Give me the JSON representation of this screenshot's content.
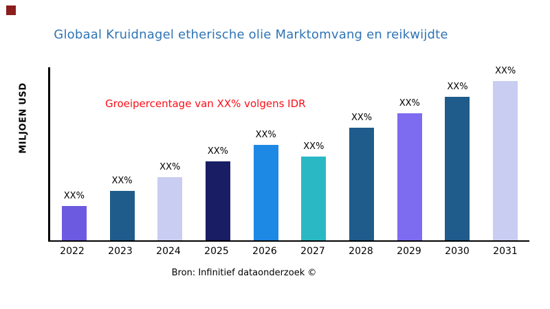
{
  "logo": {
    "color": "#8b1d1d"
  },
  "header": {
    "title": "Globaal Kruidnagel etherische olie Marktomvang en reikwijdte",
    "title_color": "#2e74b5"
  },
  "annotation": {
    "text": "Groeipercentage van XX% volgens IDR",
    "color": "#fb0d17"
  },
  "y_axis": {
    "label": "MILJOEN USD"
  },
  "source": {
    "text": "Bron: Infinitief dataonderzoek ©"
  },
  "chart_data": {
    "type": "bar",
    "title": "Globaal Kruidnagel etherische olie Marktomvang en reikwijdte",
    "xlabel": "",
    "ylabel": "MILJOEN USD",
    "categories": [
      "2022",
      "2023",
      "2024",
      "2025",
      "2026",
      "2027",
      "2028",
      "2029",
      "2030",
      "2031"
    ],
    "values": [
      50,
      72,
      92,
      115,
      139,
      122,
      164,
      185,
      209,
      232
    ],
    "values_note": "Actual values are masked on the chart as XX%; values are relative bar heights estimated from pixels",
    "data_labels": [
      "XX%",
      "XX%",
      "XX%",
      "XX%",
      "XX%",
      "XX%",
      "XX%",
      "XX%",
      "XX%",
      "XX%"
    ],
    "bar_colors": [
      "#6c5be0",
      "#1f5c8b",
      "#c9cdf2",
      "#191d63",
      "#1e88e5",
      "#2ab8c5",
      "#1f5c8b",
      "#7d6bf0",
      "#1f5c8b",
      "#c9cdf2"
    ],
    "annotation": "Groeipercentage van XX% volgens IDR",
    "source": "Bron: Infinitief dataonderzoek ©",
    "grid": false,
    "legend": "none",
    "axis_color": "#000000",
    "background": "#ffffff"
  }
}
